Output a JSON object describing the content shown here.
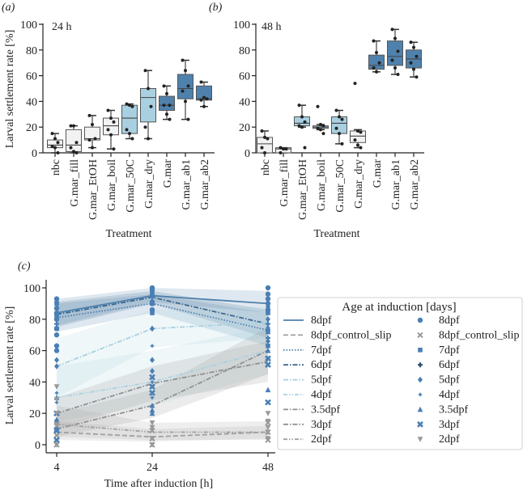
{
  "chart_data": [
    {
      "panel": "(a)",
      "type": "box",
      "annotation": "24 h",
      "title": "",
      "xlabel": "Treatment",
      "ylabel": "Larval settlement rate [%]",
      "ylim": [
        0,
        100
      ],
      "yticks": [
        0,
        20,
        40,
        60,
        80,
        100
      ],
      "categories": [
        "nbc",
        "G.mar_fill",
        "G.mar_EtOH",
        "G.mar_boil",
        "G.mar_50C",
        "G.mar_dry",
        "G.mar",
        "G.mar_ab1",
        "G.mar_ab2"
      ],
      "colors": [
        "#f2f2f2",
        "#f2f2f2",
        "#f2f2f2",
        "#f2f2f2",
        "#a9d0e0",
        "#a9d0e0",
        "#4f81ad",
        "#4f81ad",
        "#4f81ad"
      ],
      "boxes": [
        {
          "min": 0,
          "q1": 4,
          "median": 6,
          "q3": 10,
          "max": 15,
          "points": [
            15,
            11,
            8,
            5,
            4,
            0
          ]
        },
        {
          "min": 0,
          "q1": 1,
          "median": 6,
          "q3": 18,
          "max": 21,
          "points": [
            21,
            21,
            8,
            4,
            1,
            0
          ]
        },
        {
          "min": 4,
          "q1": 10,
          "median": 11,
          "q3": 20,
          "max": 29,
          "points": [
            29,
            22,
            11,
            10,
            4
          ]
        },
        {
          "min": 3,
          "q1": 14,
          "median": 21,
          "q3": 27,
          "max": 33,
          "points": [
            33,
            27,
            24,
            18,
            14,
            3
          ]
        },
        {
          "min": 11,
          "q1": 15,
          "median": 27,
          "q3": 37,
          "max": 38,
          "points": [
            38,
            37,
            36,
            18,
            15,
            11
          ]
        },
        {
          "min": 11,
          "q1": 24,
          "median": 43,
          "q3": 50,
          "max": 64,
          "points": [
            64,
            50,
            36,
            20,
            11
          ]
        },
        {
          "min": 26,
          "q1": 33,
          "median": 37,
          "q3": 44,
          "max": 52,
          "points": [
            52,
            46,
            37,
            37,
            30,
            26
          ]
        },
        {
          "min": 26,
          "q1": 42,
          "median": 50,
          "q3": 61,
          "max": 72,
          "points": [
            72,
            64,
            52,
            48,
            40,
            26
          ]
        },
        {
          "min": 36,
          "q1": 41,
          "median": 42,
          "q3": 52,
          "max": 55,
          "points": [
            55,
            43,
            42,
            41,
            36
          ]
        }
      ]
    },
    {
      "panel": "(b)",
      "type": "box",
      "annotation": "48 h",
      "title": "",
      "xlabel": "Treatment",
      "ylabel": "",
      "ylim": [
        0,
        100
      ],
      "yticks": [
        0,
        20,
        40,
        60,
        80,
        100
      ],
      "categories": [
        "nbc",
        "G.mar_fill",
        "G.mar_EtOH",
        "G.mar_boil",
        "G.mar_50C",
        "G.mar_dry",
        "G.mar",
        "G.mar_ab1",
        "G.mar_ab2"
      ],
      "colors": [
        "#f2f2f2",
        "#f2f2f2",
        "#a9d0e0",
        "#a9d0e0",
        "#a9d0e0",
        "#f2f2f2",
        "#4f81ad",
        "#4f81ad",
        "#4f81ad"
      ],
      "boxes": [
        {
          "min": 0,
          "q1": 0,
          "median": 7,
          "q3": 12,
          "max": 17,
          "points": [
            17,
            12,
            11,
            4,
            0
          ]
        },
        {
          "min": 0,
          "q1": 0,
          "median": 3,
          "q3": 4,
          "max": 4,
          "points": [
            4,
            3,
            3,
            0
          ]
        },
        {
          "min": 20,
          "q1": 21,
          "median": 23,
          "q3": 28,
          "max": 37,
          "points": [
            37,
            28,
            24,
            21,
            20,
            4
          ]
        },
        {
          "min": 18,
          "q1": 19,
          "median": 20,
          "q3": 21,
          "max": 22,
          "points": [
            36,
            22,
            21,
            19,
            18,
            15
          ]
        },
        {
          "min": 7,
          "q1": 15,
          "median": 23,
          "q3": 28,
          "max": 33,
          "points": [
            33,
            28,
            26,
            19,
            15,
            7
          ]
        },
        {
          "min": 4,
          "q1": 8,
          "median": 13,
          "q3": 17,
          "max": 18,
          "points": [
            54,
            17,
            16,
            10,
            6,
            4
          ]
        },
        {
          "min": 63,
          "q1": 65,
          "median": 68,
          "q3": 76,
          "max": 87,
          "points": [
            87,
            78,
            70,
            66,
            63
          ]
        },
        {
          "min": 61,
          "q1": 68,
          "median": 75,
          "q3": 87,
          "max": 96,
          "points": [
            96,
            89,
            79,
            72,
            66,
            61
          ]
        },
        {
          "min": 59,
          "q1": 66,
          "median": 73,
          "q3": 80,
          "max": 86,
          "points": [
            86,
            82,
            75,
            70,
            65,
            59
          ]
        }
      ]
    },
    {
      "panel": "(c)",
      "type": "line",
      "title": "",
      "xlabel": "Time after induction [h]",
      "ylabel": "Larval settlement rate [%]",
      "x": [
        4,
        24,
        48
      ],
      "xticks": [
        4,
        24,
        48
      ],
      "ylim": [
        0,
        100
      ],
      "yticks": [
        0,
        20,
        40,
        60,
        80,
        100
      ],
      "legend": {
        "title": "Age at induction [days]",
        "placement": "right"
      },
      "series": [
        {
          "name": "8dpf",
          "values": [
            84,
            95,
            90
          ],
          "ci_low": [
            76,
            91,
            84
          ],
          "ci_high": [
            93,
            100,
            98
          ],
          "color": "#4f81ad",
          "dash": "solid",
          "marker": "circle",
          "points": [
            [
              93,
              87,
              84,
              80,
              74,
              70,
              63,
              60
            ],
            [
              100,
              99,
              95,
              91,
              90,
              86
            ],
            [
              100,
              96,
              93,
              90,
              86
            ]
          ]
        },
        {
          "name": "8dpf_control_slip",
          "values": [
            8,
            5,
            8
          ],
          "ci_low": [
            3,
            2,
            4
          ],
          "ci_high": [
            15,
            10,
            12
          ],
          "color": "#a0a0a0",
          "dash": "dashed",
          "marker": "x",
          "points": [
            [
              12,
              6,
              0
            ],
            [
              9,
              4,
              0
            ],
            [
              14,
              8,
              3
            ]
          ]
        },
        {
          "name": "7dpf",
          "values": [
            81,
            90,
            73
          ],
          "ci_low": [
            72,
            84,
            63
          ],
          "ci_high": [
            90,
            96,
            84
          ],
          "color": "#4f81ad",
          "dash": "dotted",
          "marker": "square",
          "points": [
            [
              90,
              81,
              74
            ],
            [
              96,
              90,
              84
            ],
            [
              84,
              73,
              63
            ]
          ]
        },
        {
          "name": "6dpf",
          "values": [
            83,
            94,
            77
          ],
          "ci_low": [
            75,
            90,
            68
          ],
          "ci_high": [
            91,
            98,
            86
          ],
          "color": "#3d6a91",
          "dash": "dash-dot",
          "marker": "plus",
          "points": [
            [
              91,
              83,
              77
            ],
            [
              98,
              94,
              90
            ],
            [
              86,
              77,
              68
            ]
          ]
        },
        {
          "name": "5dpf",
          "values": [
            50,
            74,
            78
          ],
          "ci_low": [
            30,
            62,
            68
          ],
          "ci_high": [
            68,
            86,
            88
          ],
          "color": "#a9d0e0",
          "dash": "dash-dot",
          "marker": "diamond",
          "points": [
            [
              63,
              54,
              50
            ],
            [
              74,
              54,
              47
            ],
            [
              88,
              80,
              66
            ]
          ]
        },
        {
          "name": "4dpf",
          "values": [
            30,
            40,
            60
          ],
          "ci_low": [
            15,
            25,
            45
          ],
          "ci_high": [
            50,
            60,
            75
          ],
          "color": "#a9d0e0",
          "dash": "dash-dot-dot",
          "marker": "star",
          "points": [
            [
              33,
              27,
              16
            ],
            [
              63,
              40,
              30
            ],
            [
              75,
              60,
              55
            ]
          ]
        },
        {
          "name": "3.5dpf",
          "values": [
            10,
            25,
            60
          ],
          "ci_low": [
            5,
            17,
            45
          ],
          "ci_high": [
            20,
            35,
            75
          ],
          "color": "#909090",
          "dash": "dash-dot",
          "marker": "triangle",
          "points": [
            [
              30,
              16,
              10
            ],
            [
              25,
              20,
              22
            ],
            [
              72,
              60,
              35
            ]
          ]
        },
        {
          "name": "3dpf",
          "values": [
            20,
            39,
            53
          ],
          "ci_low": [
            10,
            28,
            40
          ],
          "ci_high": [
            30,
            50,
            66
          ],
          "color": "#909090",
          "dash": "dash-dot",
          "marker": "x-filled",
          "points": [
            [
              20,
              9,
              3
            ],
            [
              43,
              37,
              33
            ],
            [
              55,
              51,
              27
            ]
          ]
        },
        {
          "name": "2dpf",
          "values": [
            13,
            8,
            8
          ],
          "ci_low": [
            5,
            3,
            3
          ],
          "ci_high": [
            25,
            14,
            15
          ],
          "color": "#a0a0a0",
          "dash": "dash-dot-dot",
          "marker": "triangle-down",
          "points": [
            [
              37,
              29,
              20,
              13,
              0
            ],
            [
              14,
              11,
              4,
              0
            ],
            [
              20,
              15,
              11,
              8,
              4
            ]
          ]
        }
      ]
    }
  ]
}
